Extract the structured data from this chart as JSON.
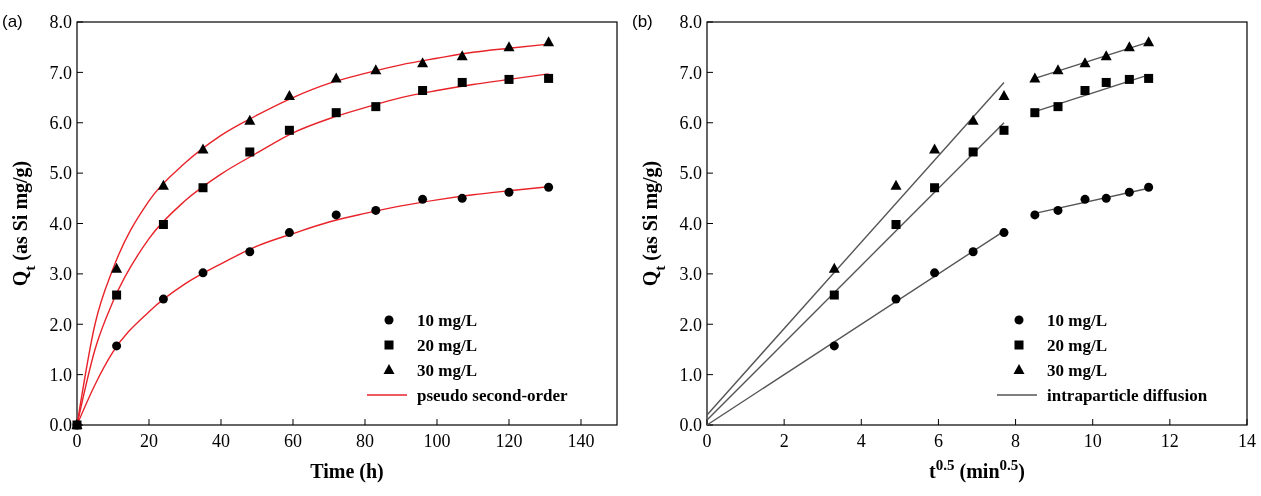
{
  "chart_data": [
    {
      "type": "scatter",
      "title": "(a)",
      "xlabel": "Time (h)",
      "ylabel": "Q$_{t}$ (as Si mg/g)",
      "xlim": [
        0,
        150
      ],
      "ylim": [
        0,
        8
      ],
      "xticks": [
        0,
        20,
        40,
        60,
        80,
        100,
        120,
        140
      ],
      "yticks": [
        {
          "value": 0,
          "label": "0.0"
        },
        {
          "value": 1,
          "label": "1.0"
        },
        {
          "value": 2,
          "label": "2.0"
        },
        {
          "value": 3,
          "label": "3.0"
        },
        {
          "value": 4,
          "label": "4.0"
        },
        {
          "value": 5,
          "label": "5.0"
        },
        {
          "value": 6,
          "label": "6.0"
        },
        {
          "value": 7,
          "label": "7.0"
        },
        {
          "value": 8,
          "label": "8.0"
        }
      ],
      "legend": "bottom right",
      "grid": false,
      "series": [
        {
          "name": "10 mg/L",
          "marker": "circle",
          "color": "#000000",
          "x": [
            0,
            11,
            24,
            35,
            48,
            59,
            72,
            83,
            96,
            107,
            120,
            131
          ],
          "values": [
            0,
            1.57,
            2.5,
            3.02,
            3.44,
            3.82,
            4.17,
            4.26,
            4.48,
            4.5,
            4.62,
            4.72
          ]
        },
        {
          "name": "20 mg/L",
          "marker": "square",
          "color": "#000000",
          "x": [
            0,
            11,
            24,
            35,
            48,
            59,
            72,
            83,
            96,
            107,
            120,
            131
          ],
          "values": [
            0,
            2.58,
            3.98,
            4.71,
            5.42,
            5.85,
            6.2,
            6.32,
            6.64,
            6.8,
            6.86,
            6.88
          ]
        },
        {
          "name": "30 mg/L",
          "marker": "triangle",
          "color": "#000000",
          "x": [
            0,
            11,
            24,
            35,
            48,
            59,
            72,
            83,
            96,
            107,
            120,
            131
          ],
          "values": [
            0,
            3.1,
            4.75,
            5.47,
            6.04,
            6.53,
            6.88,
            7.04,
            7.18,
            7.32,
            7.5,
            7.6
          ]
        },
        {
          "name": "pseudo second-order",
          "type": "line",
          "marker": "none",
          "line_style": "solid",
          "color": "#e8232a",
          "x": [
            0,
            5,
            10,
            20,
            30,
            40,
            50,
            60,
            70,
            80,
            90,
            100,
            110,
            120,
            131
          ],
          "values": [
            0,
            0.8,
            1.45,
            2.25,
            2.8,
            3.2,
            3.55,
            3.8,
            4.03,
            4.2,
            4.35,
            4.47,
            4.57,
            4.65,
            4.73
          ]
        },
        {
          "type": "line",
          "marker": "none",
          "line_style": "solid",
          "color": "#e8232a",
          "x": [
            0,
            5,
            10,
            20,
            30,
            40,
            50,
            60,
            70,
            80,
            90,
            100,
            110,
            120,
            131
          ],
          "values": [
            0,
            1.5,
            2.45,
            3.7,
            4.45,
            4.98,
            5.4,
            5.8,
            6.08,
            6.3,
            6.5,
            6.64,
            6.76,
            6.86,
            6.97
          ]
        },
        {
          "type": "line",
          "marker": "none",
          "line_style": "solid",
          "color": "#e8232a",
          "x": [
            0,
            5,
            10,
            20,
            30,
            40,
            50,
            60,
            70,
            80,
            90,
            100,
            110,
            120,
            131
          ],
          "values": [
            0,
            2.0,
            3.1,
            4.45,
            5.2,
            5.75,
            6.15,
            6.5,
            6.78,
            6.98,
            7.15,
            7.28,
            7.4,
            7.48,
            7.56
          ]
        }
      ]
    },
    {
      "type": "scatter",
      "title": "(b)",
      "xlabel": "t$^{0.5}$ (min$^{0.5}$)",
      "ylabel": "Q$_{t}$ (as Si mg/g)",
      "xlim": [
        0,
        14
      ],
      "ylim": [
        0,
        8
      ],
      "xticks": [
        0,
        2,
        4,
        6,
        8,
        10,
        12,
        14
      ],
      "yticks": [
        {
          "value": 0,
          "label": "0.0"
        },
        {
          "value": 1,
          "label": "1.0"
        },
        {
          "value": 2,
          "label": "2.0"
        },
        {
          "value": 3,
          "label": "3.0"
        },
        {
          "value": 4,
          "label": "4.0"
        },
        {
          "value": 5,
          "label": "5.0"
        },
        {
          "value": 6,
          "label": "6.0"
        },
        {
          "value": 7,
          "label": "7.0"
        },
        {
          "value": 8,
          "label": "8.0"
        }
      ],
      "legend": "bottom right",
      "grid": false,
      "series": [
        {
          "name": "10 mg/L",
          "marker": "circle",
          "color": "#000000",
          "x": [
            3.3,
            4.9,
            5.9,
            6.9,
            7.7,
            8.5,
            9.1,
            9.8,
            10.35,
            10.95,
            11.45
          ],
          "values": [
            1.57,
            2.5,
            3.02,
            3.44,
            3.82,
            4.17,
            4.26,
            4.48,
            4.5,
            4.62,
            4.72
          ]
        },
        {
          "name": "20 mg/L",
          "marker": "square",
          "color": "#000000",
          "x": [
            3.3,
            4.9,
            5.9,
            6.9,
            7.7,
            8.5,
            9.1,
            9.8,
            10.35,
            10.95,
            11.45
          ],
          "values": [
            2.58,
            3.98,
            4.71,
            5.42,
            5.85,
            6.2,
            6.32,
            6.64,
            6.8,
            6.86,
            6.88
          ]
        },
        {
          "name": "30 mg/L",
          "marker": "triangle",
          "color": "#000000",
          "x": [
            3.3,
            4.9,
            5.9,
            6.9,
            7.7,
            8.5,
            9.1,
            9.8,
            10.35,
            10.95,
            11.45
          ],
          "values": [
            3.1,
            4.75,
            5.47,
            6.04,
            6.53,
            6.88,
            7.04,
            7.18,
            7.32,
            7.5,
            7.6
          ]
        },
        {
          "name": "intraparticle diffusion",
          "type": "line",
          "marker": "none",
          "line_style": "solid",
          "color": "#555555",
          "x": [
            0,
            7.7
          ],
          "values": [
            0,
            3.85
          ]
        },
        {
          "type": "line",
          "marker": "none",
          "line_style": "solid",
          "color": "#555555",
          "x": [
            8.5,
            11.45
          ],
          "values": [
            4.2,
            4.7
          ]
        },
        {
          "type": "line",
          "marker": "none",
          "line_style": "solid",
          "color": "#555555",
          "x": [
            0,
            7.7
          ],
          "values": [
            0.1,
            6.0
          ]
        },
        {
          "type": "line",
          "marker": "none",
          "line_style": "solid",
          "color": "#555555",
          "x": [
            8.5,
            11.45
          ],
          "values": [
            6.22,
            6.95
          ]
        },
        {
          "type": "line",
          "marker": "none",
          "line_style": "solid",
          "color": "#555555",
          "x": [
            0,
            7.7
          ],
          "values": [
            0.2,
            6.8
          ]
        },
        {
          "type": "line",
          "marker": "none",
          "line_style": "solid",
          "color": "#555555",
          "x": [
            8.5,
            11.45
          ],
          "values": [
            6.88,
            7.6
          ]
        }
      ]
    }
  ]
}
